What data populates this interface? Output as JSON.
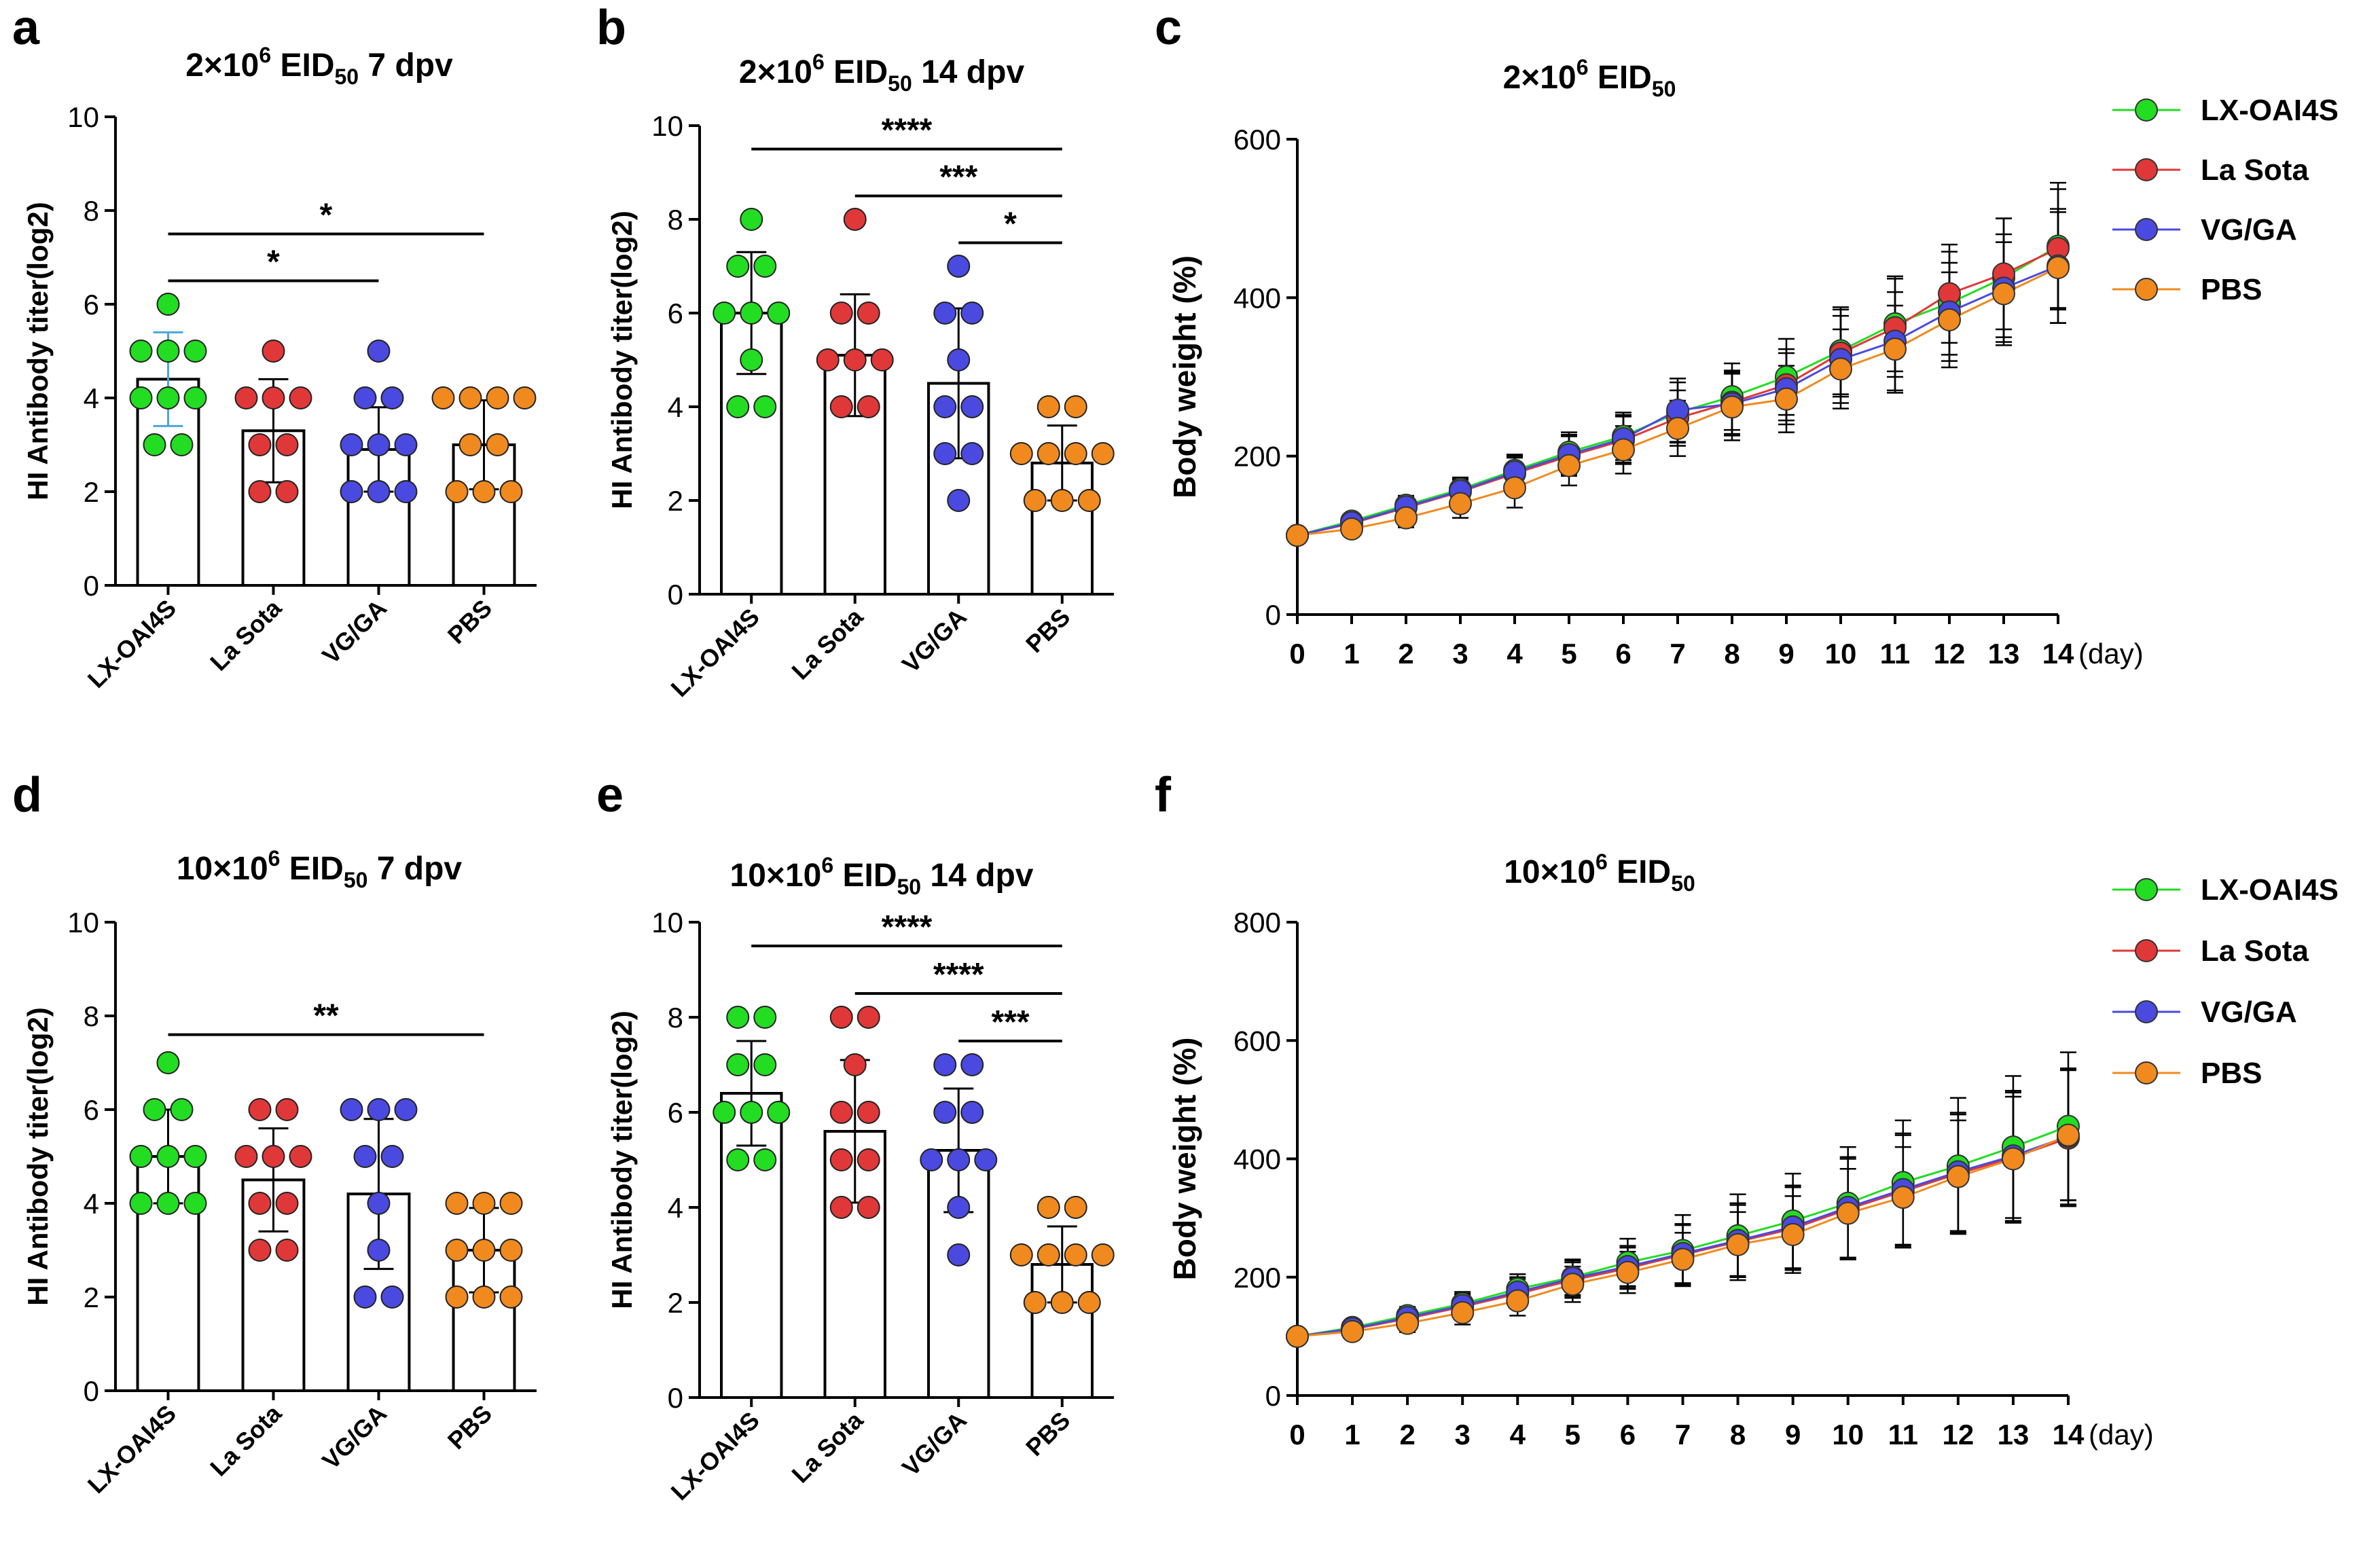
{
  "colors": {
    "LX-OAI4S": "#22dd22",
    "La Sota": "#e03838",
    "VG/GA": "#4a4ae0",
    "PBS": "#f08a1e",
    "errbar_a_lx": "#4aa8d8"
  },
  "panel_letters": [
    "a",
    "b",
    "c",
    "d",
    "e",
    "f"
  ],
  "chart_data": [
    {
      "id": "a",
      "type": "bar",
      "title_main": "2×10",
      "title_sup": "6",
      "title_mid": " EID",
      "title_sub": "50",
      "title_tail": " 7 dpv",
      "ylabel": "HI Antibody titer(log2)",
      "ylim": [
        0,
        10
      ],
      "yticks": [
        "0",
        "2",
        "4",
        "6",
        "8",
        "10"
      ],
      "categories": [
        "LX-OAI4S",
        "La Sota",
        "VG/GA",
        "PBS"
      ],
      "means": [
        4.4,
        3.3,
        2.9,
        3.0
      ],
      "sd": [
        1.0,
        1.1,
        0.9,
        0.95
      ],
      "points": [
        [
          3,
          3,
          4,
          4,
          4,
          5,
          5,
          5,
          6
        ],
        [
          2,
          2,
          3,
          3,
          4,
          4,
          4,
          5
        ],
        [
          2,
          2,
          2,
          3,
          3,
          3,
          4,
          4,
          5
        ],
        [
          2,
          2,
          2,
          3,
          3,
          4,
          4,
          4,
          4
        ]
      ],
      "significance": [
        {
          "from": 0,
          "to": 3,
          "label": "*"
        },
        {
          "from": 0,
          "to": 2,
          "label": "*"
        }
      ]
    },
    {
      "id": "b",
      "type": "bar",
      "title_main": "2×10",
      "title_sup": "6",
      "title_mid": " EID",
      "title_sub": "50",
      "title_tail": " 14 dpv",
      "ylabel": "HI Antibody titer(log2)",
      "ylim": [
        0,
        10
      ],
      "yticks": [
        "0",
        "2",
        "4",
        "6",
        "8",
        "10"
      ],
      "categories": [
        "LX-OAI4S",
        "La Sota",
        "VG/GA",
        "PBS"
      ],
      "means": [
        6.0,
        5.1,
        4.5,
        2.8
      ],
      "sd": [
        1.3,
        1.3,
        1.6,
        0.8
      ],
      "points": [
        [
          4,
          4,
          5,
          6,
          6,
          6,
          7,
          7,
          8
        ],
        [
          4,
          4,
          5,
          5,
          5,
          6,
          6,
          8
        ],
        [
          2,
          3,
          3,
          4,
          4,
          5,
          6,
          6,
          7
        ],
        [
          2,
          2,
          2,
          3,
          3,
          3,
          3,
          4,
          4
        ]
      ],
      "significance": [
        {
          "from": 0,
          "to": 3,
          "label": "****"
        },
        {
          "from": 1,
          "to": 3,
          "label": "***"
        },
        {
          "from": 2,
          "to": 3,
          "label": "*"
        }
      ]
    },
    {
      "id": "c",
      "type": "line",
      "title_main": "2×10",
      "title_sup": "6",
      "title_mid": " EID",
      "title_sub": "50",
      "title_tail": "",
      "ylabel": "Body weight (%)",
      "xunit": "(day)",
      "ylim": [
        0,
        600
      ],
      "yticks": [
        "0",
        "200",
        "400",
        "600"
      ],
      "x": [
        0,
        1,
        2,
        3,
        4,
        5,
        6,
        7,
        8,
        9,
        10,
        11,
        12,
        13,
        14
      ],
      "xticks": [
        "0",
        "1",
        "2",
        "3",
        "4",
        "5",
        "6",
        "7",
        "8",
        "9",
        "10",
        "11",
        "12",
        "13",
        "14"
      ],
      "series": [
        {
          "name": "LX-OAI4S",
          "values": [
            100,
            118,
            138,
            158,
            182,
            205,
            225,
            255,
            275,
            300,
            333,
            367,
            393,
            425,
            465
          ],
          "err": [
            4,
            8,
            12,
            15,
            20,
            25,
            30,
            38,
            42,
            48,
            55,
            60,
            65,
            75,
            80
          ]
        },
        {
          "name": "La Sota",
          "values": [
            100,
            115,
            135,
            155,
            178,
            200,
            220,
            248,
            268,
            290,
            330,
            362,
            405,
            430,
            462
          ],
          "err": [
            4,
            8,
            12,
            15,
            20,
            25,
            30,
            35,
            40,
            45,
            55,
            62,
            62,
            70,
            75
          ]
        },
        {
          "name": "VG/GA",
          "values": [
            100,
            116,
            136,
            156,
            180,
            202,
            222,
            258,
            266,
            285,
            322,
            345,
            382,
            412,
            440
          ],
          "err": [
            4,
            8,
            12,
            15,
            20,
            25,
            30,
            40,
            40,
            45,
            55,
            62,
            62,
            68,
            72
          ]
        },
        {
          "name": "PBS",
          "values": [
            100,
            108,
            122,
            140,
            160,
            188,
            208,
            235,
            262,
            272,
            310,
            335,
            372,
            405,
            438
          ],
          "err": [
            4,
            8,
            12,
            18,
            25,
            25,
            30,
            35,
            42,
            42,
            50,
            55,
            60,
            65,
            70
          ]
        }
      ]
    },
    {
      "id": "d",
      "type": "bar",
      "title_main": "10×10",
      "title_sup": "6",
      "title_mid": " EID",
      "title_sub": "50",
      "title_tail": " 7 dpv",
      "ylabel": "HI Antibody titer(log2)",
      "ylim": [
        0,
        10
      ],
      "yticks": [
        "0",
        "2",
        "4",
        "6",
        "8",
        "10"
      ],
      "categories": [
        "LX-OAI4S",
        "La Sota",
        "VG/GA",
        "PBS"
      ],
      "means": [
        5.0,
        4.5,
        4.2,
        3.0
      ],
      "sd": [
        1.0,
        1.1,
        1.6,
        0.9
      ],
      "points": [
        [
          4,
          4,
          4,
          5,
          5,
          5,
          6,
          6,
          7
        ],
        [
          3,
          3,
          4,
          4,
          5,
          5,
          5,
          6,
          6
        ],
        [
          2,
          2,
          3,
          4,
          5,
          5,
          6,
          6,
          6
        ],
        [
          2,
          2,
          2,
          3,
          3,
          3,
          4,
          4,
          4
        ]
      ],
      "significance": [
        {
          "from": 0,
          "to": 3,
          "label": "**"
        }
      ]
    },
    {
      "id": "e",
      "type": "bar",
      "title_main": "10×10",
      "title_sup": "6",
      "title_mid": " EID",
      "title_sub": "50",
      "title_tail": " 14 dpv",
      "ylabel": "HI Antibody titer(log2)",
      "ylim": [
        0,
        10
      ],
      "yticks": [
        "0",
        "2",
        "4",
        "6",
        "8",
        "10"
      ],
      "categories": [
        "LX-OAI4S",
        "La Sota",
        "VG/GA",
        "PBS"
      ],
      "means": [
        6.4,
        5.6,
        5.2,
        2.8
      ],
      "sd": [
        1.1,
        1.5,
        1.3,
        0.8
      ],
      "points": [
        [
          5,
          5,
          6,
          6,
          6,
          7,
          7,
          8,
          8
        ],
        [
          4,
          4,
          5,
          5,
          6,
          6,
          7,
          8,
          8
        ],
        [
          3,
          4,
          5,
          5,
          5,
          6,
          6,
          7,
          7
        ],
        [
          2,
          2,
          2,
          3,
          3,
          3,
          3,
          4,
          4
        ]
      ],
      "significance": [
        {
          "from": 0,
          "to": 3,
          "label": "****"
        },
        {
          "from": 1,
          "to": 3,
          "label": "****"
        },
        {
          "from": 2,
          "to": 3,
          "label": "***"
        }
      ]
    },
    {
      "id": "f",
      "type": "line",
      "title_main": "10×10",
      "title_sup": "6",
      "title_mid": " EID",
      "title_sub": "50",
      "title_tail": "",
      "ylabel": "Body weight (%)",
      "xunit": "(day)",
      "ylim": [
        0,
        800
      ],
      "yticks": [
        "0",
        "200",
        "400",
        "600",
        "800"
      ],
      "x": [
        0,
        1,
        2,
        3,
        4,
        5,
        6,
        7,
        8,
        9,
        10,
        11,
        12,
        13,
        14
      ],
      "xticks": [
        "0",
        "1",
        "2",
        "3",
        "4",
        "5",
        "6",
        "7",
        "8",
        "9",
        "10",
        "11",
        "12",
        "13",
        "14"
      ],
      "series": [
        {
          "name": "LX-OAI4S",
          "values": [
            100,
            115,
            135,
            155,
            180,
            200,
            225,
            245,
            270,
            295,
            325,
            360,
            388,
            420,
            455
          ],
          "err": [
            4,
            8,
            15,
            20,
            25,
            30,
            40,
            60,
            70,
            80,
            95,
            105,
            115,
            120,
            125
          ]
        },
        {
          "name": "La Sota",
          "values": [
            100,
            112,
            130,
            150,
            172,
            195,
            215,
            238,
            260,
            282,
            315,
            345,
            375,
            402,
            435
          ],
          "err": [
            4,
            8,
            15,
            20,
            25,
            30,
            35,
            50,
            65,
            70,
            85,
            95,
            100,
            110,
            115
          ]
        },
        {
          "name": "VG/GA",
          "values": [
            100,
            113,
            132,
            152,
            175,
            198,
            218,
            240,
            262,
            285,
            318,
            348,
            378,
            405,
            438
          ],
          "err": [
            4,
            8,
            15,
            20,
            25,
            30,
            35,
            50,
            60,
            70,
            85,
            95,
            100,
            110,
            115
          ]
        },
        {
          "name": "PBS",
          "values": [
            100,
            108,
            122,
            140,
            160,
            188,
            208,
            230,
            255,
            272,
            308,
            335,
            370,
            400,
            440
          ],
          "err": [
            4,
            8,
            15,
            20,
            25,
            30,
            35,
            45,
            55,
            65,
            75,
            85,
            95,
            105,
            110
          ]
        }
      ]
    }
  ]
}
